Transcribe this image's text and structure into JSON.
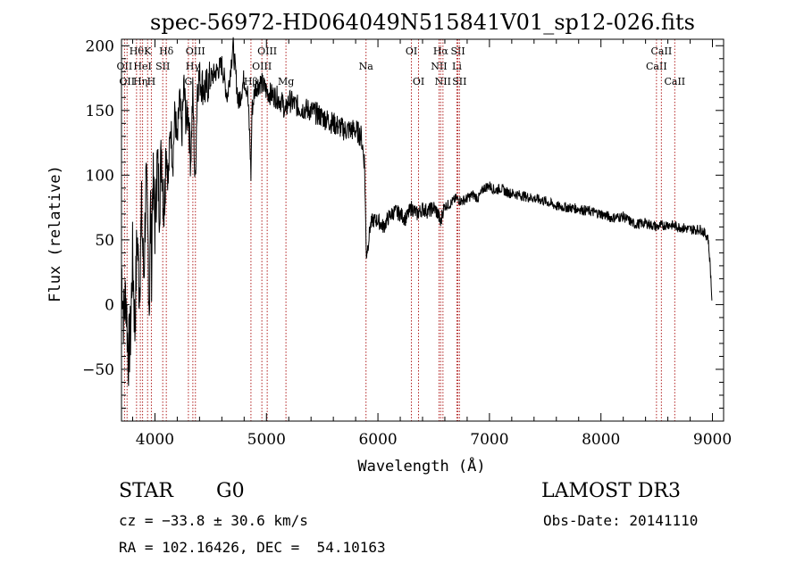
{
  "chart_data": {
    "type": "line",
    "title": "spec-56972-HD064049N515841V01_sp12-026.fits",
    "xlabel": "Wavelength (Å)",
    "ylabel": "Flux (relative)",
    "xlim": [
      3700,
      9100
    ],
    "ylim": [
      -90,
      205
    ],
    "x_ticks": [
      {
        "value": 4000,
        "label": "4000"
      },
      {
        "value": 5000,
        "label": "5000"
      },
      {
        "value": 6000,
        "label": "6000"
      },
      {
        "value": 7000,
        "label": "7000"
      },
      {
        "value": 8000,
        "label": "8000"
      },
      {
        "value": 9000,
        "label": "9000"
      }
    ],
    "y_ticks": [
      {
        "value": -50,
        "label": "−50"
      },
      {
        "value": 0,
        "label": "0"
      },
      {
        "value": 50,
        "label": "50"
      },
      {
        "value": 100,
        "label": "100"
      },
      {
        "value": 150,
        "label": "150"
      },
      {
        "value": 200,
        "label": "200"
      }
    ],
    "series": [
      {
        "x": [
          3700,
          3720,
          3740,
          3760,
          3780,
          3800,
          3820,
          3840,
          3860,
          3880,
          3900,
          3920,
          3940,
          3950,
          3960,
          3970,
          3980,
          4000,
          4020,
          4040,
          4060,
          4080,
          4100,
          4120,
          4140,
          4160,
          4180,
          4200,
          4220,
          4240,
          4260,
          4280,
          4300,
          4320,
          4340,
          4360,
          4380,
          4400,
          4450,
          4500,
          4550,
          4600,
          4650,
          4700,
          4750,
          4800,
          4830,
          4850,
          4861,
          4870,
          4900,
          4950,
          5000,
          5050,
          5100,
          5150,
          5170,
          5200,
          5250,
          5300,
          5400,
          5500,
          5600,
          5700,
          5800,
          5850,
          5880,
          5895,
          5910,
          5930,
          5950,
          6000,
          6050,
          6100,
          6150,
          6200,
          6250,
          6300,
          6350,
          6400,
          6450,
          6500,
          6540,
          6563,
          6580,
          6600,
          6650,
          6700,
          6750,
          6800,
          6850,
          6900,
          6950,
          7000,
          7050,
          7100,
          7150,
          7200,
          7300,
          7400,
          7500,
          7600,
          7700,
          7800,
          7900,
          8000,
          8100,
          8200,
          8300,
          8400,
          8500,
          8600,
          8700,
          8800,
          8900,
          8960,
          8980,
          8995
        ],
        "y": [
          30,
          -10,
          10,
          -40,
          -25,
          40,
          -20,
          55,
          10,
          70,
          20,
          95,
          40,
          -5,
          80,
          30,
          100,
          60,
          110,
          80,
          120,
          70,
          125,
          95,
          140,
          110,
          150,
          120,
          160,
          130,
          170,
          140,
          150,
          110,
          165,
          90,
          170,
          175,
          165,
          175,
          180,
          185,
          160,
          200,
          155,
          175,
          165,
          130,
          100,
          150,
          168,
          172,
          165,
          162,
          160,
          155,
          148,
          158,
          155,
          152,
          150,
          145,
          140,
          135,
          135,
          130,
          110,
          40,
          45,
          60,
          65,
          65,
          60,
          68,
          72,
          70,
          66,
          75,
          70,
          74,
          72,
          75,
          70,
          62,
          72,
          76,
          78,
          82,
          80,
          82,
          85,
          82,
          90,
          92,
          88,
          90,
          87,
          86,
          84,
          82,
          80,
          76,
          75,
          74,
          72,
          70,
          67,
          68,
          62,
          63,
          60,
          62,
          60,
          58,
          58,
          52,
          30,
          5
        ]
      }
    ],
    "line_markers": [
      {
        "x": 3727,
        "label": "OII",
        "row": 1
      },
      {
        "x": 3750,
        "label": "OII",
        "row": 2
      },
      {
        "x": 3835,
        "label": "Hθ",
        "row": 0
      },
      {
        "x": 3869,
        "label": "Hη",
        "row": 2
      },
      {
        "x": 3889,
        "label": "HeI",
        "row": 1
      },
      {
        "x": 3934,
        "label": "K",
        "row": 0
      },
      {
        "x": 3968,
        "label": "H",
        "row": 2
      },
      {
        "x": 4070,
        "label": "SII",
        "row": 1
      },
      {
        "x": 4102,
        "label": "Hδ",
        "row": 0
      },
      {
        "x": 4300,
        "label": "G",
        "row": 2
      },
      {
        "x": 4340,
        "label": "Hγ",
        "row": 1
      },
      {
        "x": 4363,
        "label": "OIII",
        "row": 0
      },
      {
        "x": 4861,
        "label": "Hβ",
        "row": 2
      },
      {
        "x": 4959,
        "label": "OIII",
        "row": 1
      },
      {
        "x": 5007,
        "label": "OIII",
        "row": 0
      },
      {
        "x": 5175,
        "label": "Mg",
        "row": 2
      },
      {
        "x": 5893,
        "label": "Na",
        "row": 1
      },
      {
        "x": 6300,
        "label": "OI",
        "row": 0
      },
      {
        "x": 6364,
        "label": "OI",
        "row": 2
      },
      {
        "x": 6548,
        "label": "NII",
        "row": 1
      },
      {
        "x": 6563,
        "label": "Hα",
        "row": 0
      },
      {
        "x": 6583,
        "label": "NII",
        "row": 2
      },
      {
        "x": 6708,
        "label": "Li",
        "row": 1
      },
      {
        "x": 6717,
        "label": "SII",
        "row": 0
      },
      {
        "x": 6731,
        "label": "SII",
        "row": 2
      },
      {
        "x": 8498,
        "label": "CaII",
        "row": 1
      },
      {
        "x": 8542,
        "label": "CaII",
        "row": 0
      },
      {
        "x": 8662,
        "label": "CaII",
        "row": 2
      }
    ],
    "grid": false,
    "legend": "none"
  },
  "info": {
    "class": "STAR",
    "subclass": "G0",
    "survey": "LAMOST DR3",
    "cz": "cz = −33.8 ± 30.6 km/s",
    "obs_date": "Obs-Date: 20141110",
    "coords": "RA = 102.16426, DEC =  54.10163"
  }
}
